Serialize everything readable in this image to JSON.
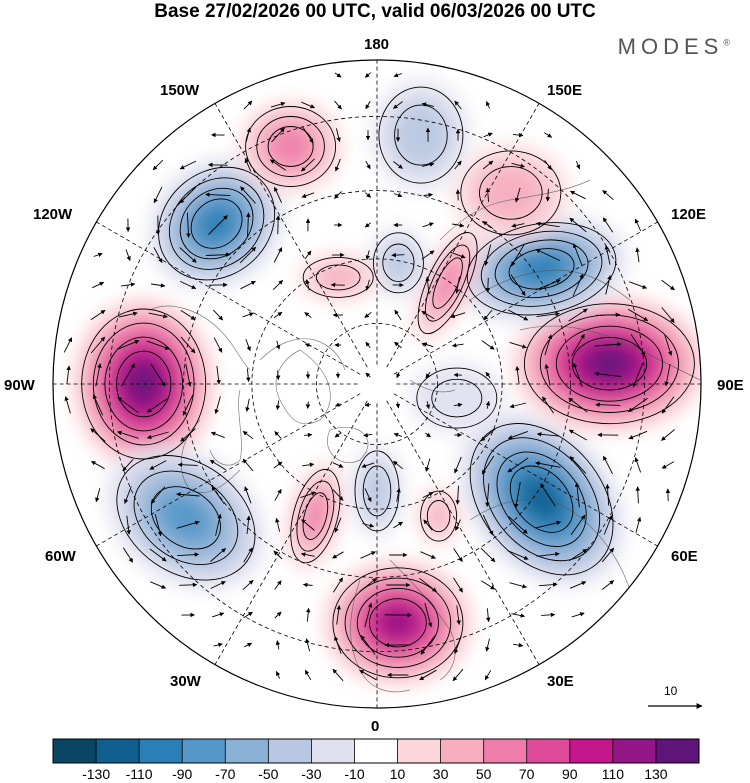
{
  "title": "Base 27/02/2026 00 UTC, valid 06/03/2026 00 UTC",
  "brand": "MODES",
  "brand_mark": "®",
  "longitude_labels": {
    "lon_180": "180",
    "lon_150e": "150E",
    "lon_120e": "120E",
    "lon_90e": "90E",
    "lon_60e": "60E",
    "lon_30e": "30E",
    "lon_0": "0",
    "lon_30w": "30W",
    "lon_60w": "60W",
    "lon_90w": "90W",
    "lon_120w": "120W",
    "lon_150w": "150W"
  },
  "reference_vector": {
    "value": "10"
  },
  "colorbar": {
    "colors": [
      "#0b4566",
      "#105f8f",
      "#2a7fb6",
      "#5598c8",
      "#8bb1d6",
      "#b9c8e2",
      "#e1e0ef",
      "#ffffff",
      "#fbd6da",
      "#f6aec0",
      "#ee7dab",
      "#e04a9a",
      "#c3168a",
      "#931586",
      "#5e1479"
    ],
    "labels": [
      "-130",
      "-110",
      "-90",
      "-70",
      "-50",
      "-30",
      "-10",
      "10",
      "30",
      "50",
      "70",
      "90",
      "110",
      "130"
    ]
  },
  "anomaly_centers": [
    {
      "name": "ne-pacific-low",
      "lon": -135,
      "dist": 0.7,
      "value": -105,
      "rx": 52,
      "ry": 62,
      "rot": 50
    },
    {
      "name": "hudson-high",
      "lon": -90,
      "dist": 0.72,
      "value": 135,
      "rx": 62,
      "ry": 75,
      "rot": 0
    },
    {
      "name": "n-atlantic-low",
      "lon": -55,
      "dist": 0.72,
      "value": -85,
      "rx": 55,
      "ry": 75,
      "rot": -55
    },
    {
      "name": "europe-high",
      "lon": 5,
      "dist": 0.74,
      "value": 115,
      "rx": 65,
      "ry": 55,
      "rot": 0
    },
    {
      "name": "siberia-low",
      "lon": 55,
      "dist": 0.62,
      "value": -125,
      "rx": 60,
      "ry": 85,
      "rot": -40
    },
    {
      "name": "central-asia-high",
      "lon": 95,
      "dist": 0.72,
      "value": 140,
      "rx": 85,
      "ry": 60,
      "rot": 0
    },
    {
      "name": "east-asia-low",
      "lon": 125,
      "dist": 0.62,
      "value": -100,
      "rx": 75,
      "ry": 45,
      "rot": -10
    },
    {
      "name": "nw-pacific-high",
      "lon": 145,
      "dist": 0.72,
      "value": 45,
      "rx": 50,
      "ry": 42,
      "rot": 0
    },
    {
      "name": "bering-low",
      "lon": 170,
      "dist": 0.78,
      "value": -40,
      "rx": 42,
      "ry": 48,
      "rot": 0
    },
    {
      "name": "gulf-alaska-high",
      "lon": -160,
      "dist": 0.78,
      "value": 70,
      "rx": 45,
      "ry": 40,
      "rot": 0
    },
    {
      "name": "arctic-high-a",
      "lon": 145,
      "dist": 0.38,
      "value": 55,
      "rx": 20,
      "ry": 55,
      "rot": 25
    },
    {
      "name": "arctic-low-a",
      "lon": 170,
      "dist": 0.38,
      "value": -35,
      "rx": 25,
      "ry": 30,
      "rot": 0
    },
    {
      "name": "beaufort-high",
      "lon": -160,
      "dist": 0.35,
      "value": 40,
      "rx": 35,
      "ry": 20,
      "rot": 0
    },
    {
      "name": "greenland-high",
      "lon": -25,
      "dist": 0.45,
      "value": 55,
      "rx": 22,
      "ry": 48,
      "rot": 15
    },
    {
      "name": "barents-low",
      "lon": 0,
      "dist": 0.33,
      "value": -45,
      "rx": 22,
      "ry": 40,
      "rot": 0
    },
    {
      "name": "kara-high",
      "lon": 25,
      "dist": 0.45,
      "value": 45,
      "rx": 18,
      "ry": 25,
      "rot": 0
    },
    {
      "name": "laptev-low",
      "lon": 80,
      "dist": 0.25,
      "value": -15,
      "rx": 40,
      "ry": 30,
      "rot": 0
    }
  ]
}
